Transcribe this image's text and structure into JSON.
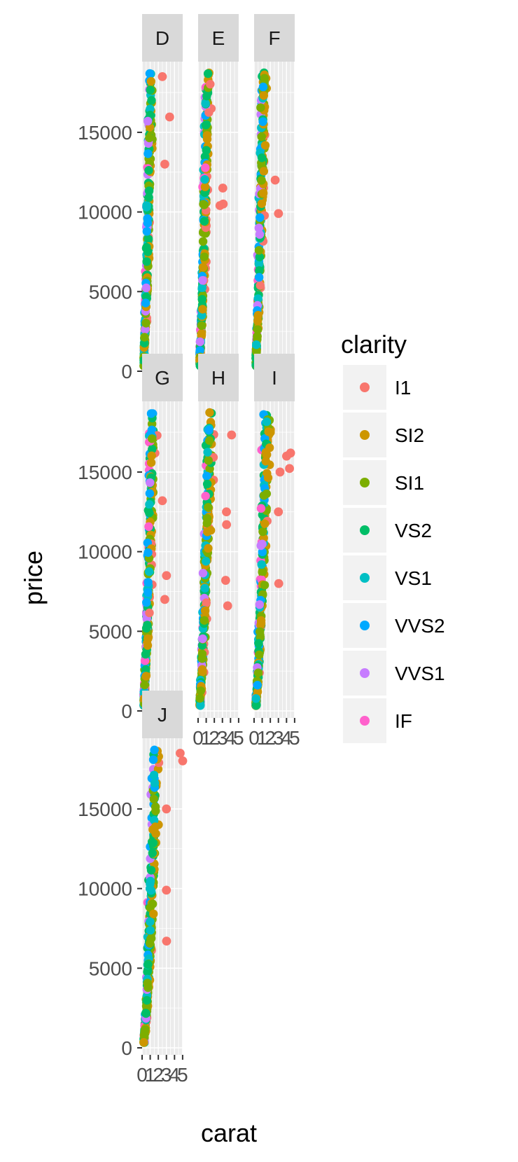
{
  "chart_data": {
    "type": "scatter",
    "facet_by": "color",
    "facets": [
      "D",
      "E",
      "F",
      "G",
      "H",
      "I",
      "J"
    ],
    "xlabel": "carat",
    "ylabel": "price",
    "xlim": [
      0,
      5.01
    ],
    "ylim": [
      0,
      18823
    ],
    "x_ticks": [
      "0",
      "1",
      "2",
      "3",
      "4",
      "5"
    ],
    "y_ticks": [
      "0",
      "5000",
      "10000",
      "15000"
    ],
    "grid": true,
    "legend": {
      "title": "clarity",
      "position": "right",
      "entries": [
        {
          "name": "I1",
          "color": "#F8766D"
        },
        {
          "name": "SI2",
          "color": "#CD9600"
        },
        {
          "name": "SI1",
          "color": "#7CAE00"
        },
        {
          "name": "VS2",
          "color": "#00BE67"
        },
        {
          "name": "VS1",
          "color": "#00BFC4"
        },
        {
          "name": "VVS2",
          "color": "#00A9FF"
        },
        {
          "name": "VVS1",
          "color": "#C77CFF"
        },
        {
          "name": "IF",
          "color": "#FF61CC"
        }
      ]
    },
    "panel_background": "#EBEBEB",
    "strip_background": "#D9D9D9",
    "outliers": {
      "D": [
        [
          3.4,
          15964
        ],
        [
          2.8,
          13000
        ],
        [
          2.5,
          18500
        ]
      ],
      "E": [
        [
          3.05,
          11500
        ],
        [
          3.1,
          10500
        ],
        [
          2.7,
          10400
        ]
      ],
      "F": [
        [
          3.01,
          9900
        ],
        [
          2.6,
          12000
        ]
      ],
      "G": [
        [
          3.01,
          8500
        ],
        [
          2.8,
          7000
        ],
        [
          2.5,
          13200
        ]
      ],
      "H": [
        [
          4.13,
          17329
        ],
        [
          3.5,
          12500
        ],
        [
          3.51,
          11700
        ],
        [
          3.65,
          6600
        ],
        [
          3.4,
          8200
        ]
      ],
      "I": [
        [
          4.5,
          16193
        ],
        [
          4.37,
          15223
        ],
        [
          4.01,
          16000
        ],
        [
          3.2,
          15000
        ],
        [
          3.0,
          12500
        ],
        [
          3.04,
          8000
        ]
      ],
      "J": [
        [
          5.01,
          18018
        ],
        [
          4.7,
          18500
        ],
        [
          3.0,
          15000
        ],
        [
          3.0,
          9900
        ],
        [
          3.02,
          6700
        ]
      ]
    }
  }
}
